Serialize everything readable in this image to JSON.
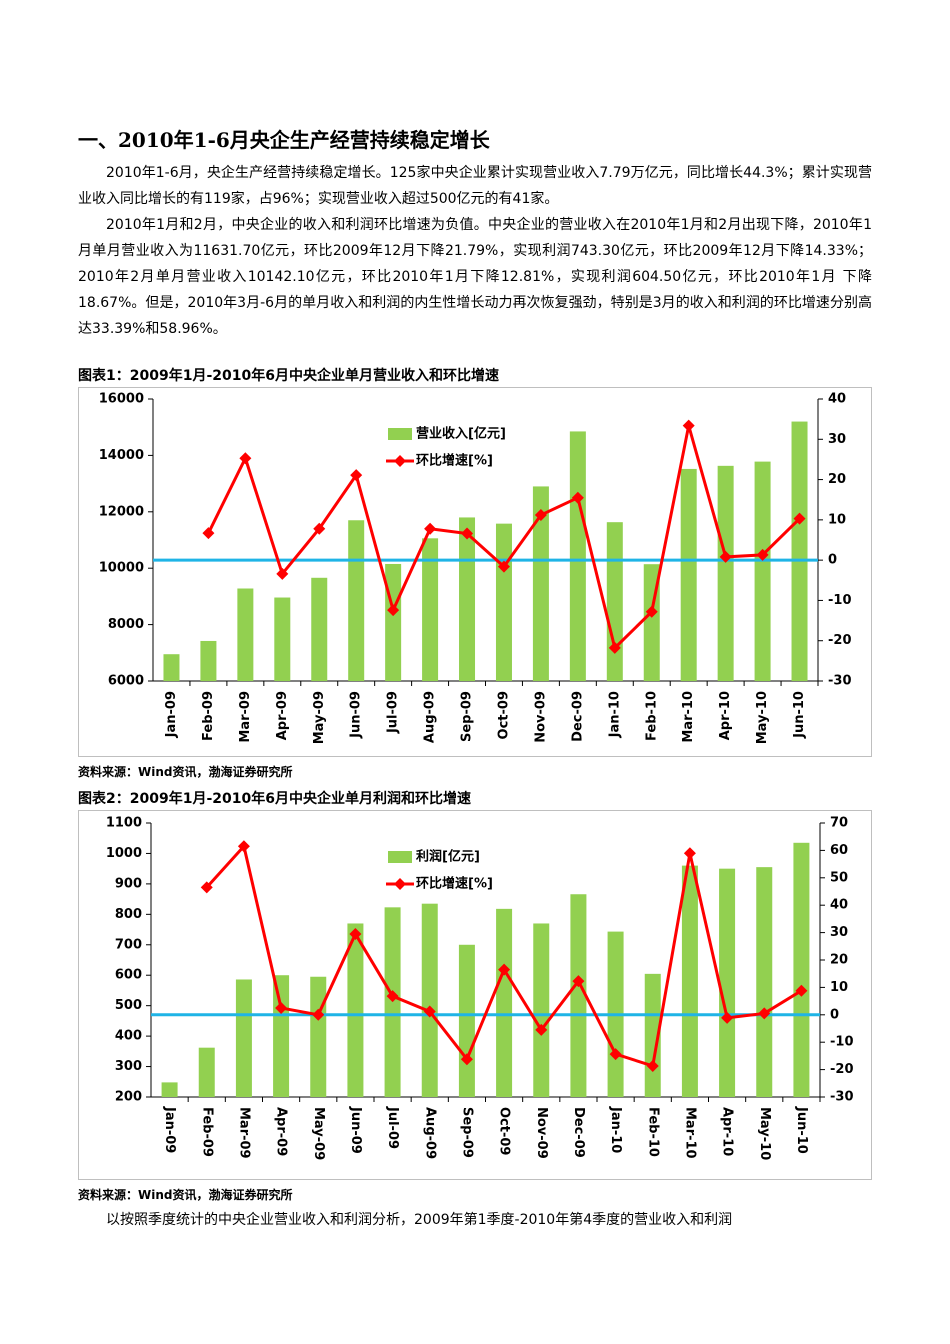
{
  "heading": "一、2010年1-6月央企生产经营持续稳定增长",
  "paragraphs": [
    "2010年1-6月，央企生产经营持续稳定增长。125家中央企业累计实现营业收入7.79万亿元，同比增长44.3%；累计实现营业收入同比增长的有119家，占96%；实现营业收入超过500亿元的有41家。",
    "2010年1月和2月，中央企业的收入和利润环比增速为负值。中央企业的营业收入在2010年1月和2月出现下降，2010年1月单月营业收入为11631.70亿元，环比2009年12月下降21.79%，实现利润743.30亿元，环比2009年12月下降14.33%；2010年2月单月营业收入10142.10亿元，环比2010年1月下降12.81%，实现利润604.50亿元，环比2010年1月 下降18.67%。但是，2010年3月-6月的单月收入和利润的内生性增长动力再次恢复强劲，特别是3月的收入和利润的环比增速分别高达33.39%和58.96%。"
  ],
  "closing_paragraph": "以按照季度统计的中央企业营业收入和利润分析，2009年第1季度-2010年第4季度的营业收入和利润",
  "chart_data": [
    {
      "type": "combo",
      "title": "图表1：2009年1月-2010年6月中央企业单月营业收入和环比增速",
      "source": "资料来源：Wind资讯，渤海证券研究所",
      "categories": [
        "Jan-09",
        "Feb-09",
        "Mar-09",
        "Apr-09",
        "May-09",
        "Jun-09",
        "Jul-09",
        "Aug-09",
        "Sep-09",
        "Oct-09",
        "Nov-09",
        "Dec-09",
        "Jan-10",
        "Feb-10",
        "Mar-10",
        "Apr-10",
        "May-10",
        "Jun-10"
      ],
      "series": [
        {
          "name": "营业收入[亿元]",
          "type": "bar",
          "color": "#92d050",
          "values": [
            6950,
            7420,
            9280,
            8960,
            9660,
            11700,
            10150,
            11060,
            11800,
            11580,
            12900,
            14850,
            11631.7,
            10142.1,
            13520,
            13630,
            13780,
            15200
          ]
        },
        {
          "name": "环比增速[%]",
          "type": "line",
          "axis": "y2",
          "color": "#ff0000",
          "values": [
            null,
            6.7,
            25.3,
            -3.4,
            7.8,
            21.1,
            -12.4,
            7.8,
            6.6,
            -1.6,
            11.2,
            15.5,
            -21.79,
            -12.81,
            33.39,
            0.8,
            1.3,
            10.3
          ]
        }
      ],
      "ylim": [
        6000,
        16000
      ],
      "yticks": [
        6000,
        8000,
        10000,
        12000,
        14000,
        16000
      ],
      "y2lim": [
        -30,
        40
      ],
      "y2ticks": [
        -30,
        -20,
        -10,
        0,
        10,
        20,
        30,
        40
      ]
    },
    {
      "type": "combo",
      "title": "图表2：2009年1月-2010年6月中央企业单月利润和环比增速",
      "source": "资料来源：Wind资讯，渤海证券研究所",
      "categories": [
        "Jan-09",
        "Feb-09",
        "Mar-09",
        "Apr-09",
        "May-09",
        "Jun-09",
        "Jul-09",
        "Aug-09",
        "Sep-09",
        "Oct-09",
        "Nov-09",
        "Dec-09",
        "Jan-10",
        "Feb-10",
        "Mar-10",
        "Apr-10",
        "May-10",
        "Jun-10"
      ],
      "series": [
        {
          "name": "利润[亿元]",
          "type": "bar",
          "color": "#92d050",
          "values": [
            248,
            362,
            586,
            600,
            595,
            770,
            823,
            835,
            700,
            818,
            770,
            866,
            743.3,
            604.5,
            960,
            950,
            955,
            1035
          ]
        },
        {
          "name": "环比增速[%]",
          "type": "line",
          "axis": "y2",
          "color": "#ff0000",
          "values": [
            null,
            46.5,
            61.5,
            2.5,
            0,
            29.5,
            6.8,
            1.2,
            -16.2,
            16.5,
            -5.5,
            12.3,
            -14.33,
            -18.67,
            58.96,
            -1.1,
            0.5,
            8.8
          ]
        }
      ],
      "ylim": [
        200,
        1100
      ],
      "yticks": [
        200,
        300,
        400,
        500,
        600,
        700,
        800,
        900,
        1000,
        1100
      ],
      "y2lim": [
        -30,
        70
      ],
      "y2ticks": [
        -30,
        -20,
        -10,
        0,
        10,
        20,
        30,
        40,
        50,
        60,
        70
      ]
    }
  ]
}
